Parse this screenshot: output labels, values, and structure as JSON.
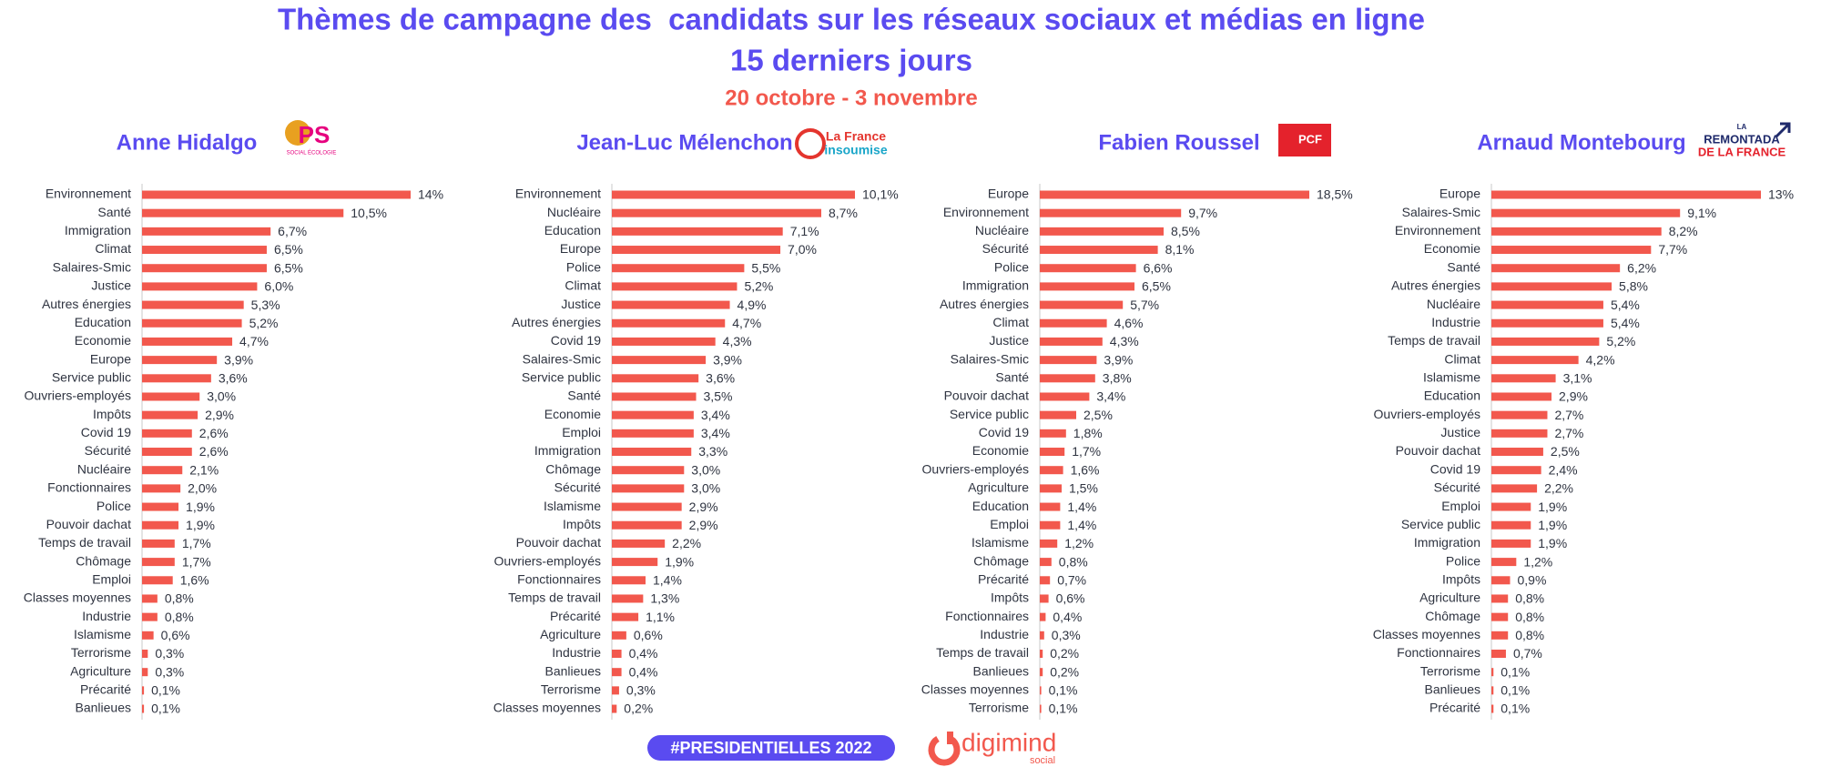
{
  "header": {
    "title_lines": [
      "Thèmes de campagne des  candidats sur les réseaux sociaux et médias en ligne",
      "15 derniers jours"
    ],
    "subtitle": "20 octobre - 3 novembre"
  },
  "chart_data": [
    {
      "type": "bar",
      "orientation": "horizontal",
      "title": "Anne Hidalgo",
      "logo": [
        "PS",
        "SOCIAL ÉCOLOGIE"
      ],
      "color": "#f2584d",
      "categories": [
        "Environnement",
        "Santé",
        "Immigration",
        "Climat",
        "Salaires-Smic",
        "Justice",
        "Autres énergies",
        "Education",
        "Economie",
        "Europe",
        "Service public",
        "Ouvriers-employés",
        "Impôts",
        "Covid 19",
        "Sécurité",
        "Nucléaire",
        "Fonctionnaires",
        "Police",
        "Pouvoir dachat",
        "Temps de travail",
        "Chômage",
        "Emploi",
        "Classes moyennes",
        "Industrie",
        "Islamisme",
        "Terrorisme",
        "Agriculture",
        "Précarité",
        "Banlieues"
      ],
      "values": [
        14,
        10.5,
        6.7,
        6.5,
        6.5,
        6.0,
        5.3,
        5.2,
        4.7,
        3.9,
        3.6,
        3.0,
        2.9,
        2.6,
        2.6,
        2.1,
        2.0,
        1.9,
        1.9,
        1.7,
        1.7,
        1.6,
        0.8,
        0.8,
        0.6,
        0.3,
        0.3,
        0.1,
        0.1
      ],
      "value_labels": [
        "14%",
        "10,5%",
        "6,7%",
        "6,5%",
        "6,5%",
        "6,0%",
        "5,3%",
        "5,2%",
        "4,7%",
        "3,9%",
        "3,6%",
        "3,0%",
        "2,9%",
        "2,6%",
        "2,6%",
        "2,1%",
        "2,0%",
        "1,9%",
        "1,9%",
        "1,7%",
        "1,7%",
        "1,6%",
        "0,8%",
        "0,8%",
        "0,6%",
        "0,3%",
        "0,3%",
        "0,1%",
        "0,1%"
      ]
    },
    {
      "type": "bar",
      "orientation": "horizontal",
      "title": "Jean-Luc Mélenchon",
      "logo": [
        "La France",
        "insoumise"
      ],
      "color": "#f2584d",
      "categories": [
        "Environnement",
        "Nucléaire",
        "Education",
        "Europe",
        "Police",
        "Climat",
        "Justice",
        "Autres énergies",
        "Covid 19",
        "Salaires-Smic",
        "Service public",
        "Santé",
        "Economie",
        "Emploi",
        "Immigration",
        "Chômage",
        "Sécurité",
        "Islamisme",
        "Impôts",
        "Pouvoir dachat",
        "Ouvriers-employés",
        "Fonctionnaires",
        "Temps de travail",
        "Précarité",
        "Agriculture",
        "Industrie",
        "Banlieues",
        "Terrorisme",
        "Classes moyennes"
      ],
      "values": [
        10.1,
        8.7,
        7.1,
        7.0,
        5.5,
        5.2,
        4.9,
        4.7,
        4.3,
        3.9,
        3.6,
        3.5,
        3.4,
        3.4,
        3.3,
        3.0,
        3.0,
        2.9,
        2.9,
        2.2,
        1.9,
        1.4,
        1.3,
        1.1,
        0.6,
        0.4,
        0.4,
        0.3,
        0.2
      ],
      "value_labels": [
        "10,1%",
        "8,7%",
        "7,1%",
        "7,0%",
        "5,5%",
        "5,2%",
        "4,9%",
        "4,7%",
        "4,3%",
        "3,9%",
        "3,6%",
        "3,5%",
        "3,4%",
        "3,4%",
        "3,3%",
        "3,0%",
        "3,0%",
        "2,9%",
        "2,9%",
        "2,2%",
        "1,9%",
        "1,4%",
        "1,3%",
        "1,1%",
        "0,6%",
        "0,4%",
        "0,4%",
        "0,3%",
        "0,2%"
      ]
    },
    {
      "type": "bar",
      "orientation": "horizontal",
      "title": "Fabien Roussel",
      "logo": [
        "PCF"
      ],
      "color": "#f2584d",
      "categories": [
        "Europe",
        "Environnement",
        "Nucléaire",
        "Sécurité",
        "Police",
        "Immigration",
        "Autres énergies",
        "Climat",
        "Justice",
        "Salaires-Smic",
        "Santé",
        "Pouvoir dachat",
        "Service public",
        "Covid 19",
        "Economie",
        "Ouvriers-employés",
        "Agriculture",
        "Education",
        "Emploi",
        "Islamisme",
        "Chômage",
        "Précarité",
        "Impôts",
        "Fonctionnaires",
        "Industrie",
        "Temps de travail",
        "Banlieues",
        "Classes moyennes",
        "Terrorisme"
      ],
      "values": [
        18.5,
        9.7,
        8.5,
        8.1,
        6.6,
        6.5,
        5.7,
        4.6,
        4.3,
        3.9,
        3.8,
        3.4,
        2.5,
        1.8,
        1.7,
        1.6,
        1.5,
        1.4,
        1.4,
        1.2,
        0.8,
        0.7,
        0.6,
        0.4,
        0.3,
        0.2,
        0.2,
        0.1,
        0.1
      ],
      "value_labels": [
        "18,5%",
        "9,7%",
        "8,5%",
        "8,1%",
        "6,6%",
        "6,5%",
        "5,7%",
        "4,6%",
        "4,3%",
        "3,9%",
        "3,8%",
        "3,4%",
        "2,5%",
        "1,8%",
        "1,7%",
        "1,6%",
        "1,5%",
        "1,4%",
        "1,4%",
        "1,2%",
        "0,8%",
        "0,7%",
        "0,6%",
        "0,4%",
        "0,3%",
        "0,2%",
        "0,2%",
        "0,1%",
        "0,1%"
      ]
    },
    {
      "type": "bar",
      "orientation": "horizontal",
      "title": "Arnaud Montebourg",
      "logo": [
        "LA",
        "REMONTADA",
        "DE LA FRANCE"
      ],
      "color": "#f2584d",
      "categories": [
        "Europe",
        "Salaires-Smic",
        "Environnement",
        "Economie",
        "Santé",
        "Autres énergies",
        "Nucléaire",
        "Industrie",
        "Temps de travail",
        "Climat",
        "Islamisme",
        "Education",
        "Ouvriers-employés",
        "Justice",
        "Pouvoir dachat",
        "Covid 19",
        "Sécurité",
        "Emploi",
        "Service public",
        "Immigration",
        "Police",
        "Impôts",
        "Agriculture",
        "Chômage",
        "Classes moyennes",
        "Fonctionnaires",
        "Terrorisme",
        "Banlieues",
        "Précarité"
      ],
      "values": [
        13,
        9.1,
        8.2,
        7.7,
        6.2,
        5.8,
        5.4,
        5.4,
        5.2,
        4.2,
        3.1,
        2.9,
        2.7,
        2.7,
        2.5,
        2.4,
        2.2,
        1.9,
        1.9,
        1.9,
        1.2,
        0.9,
        0.8,
        0.8,
        0.8,
        0.7,
        0.1,
        0.1,
        0.1
      ],
      "value_labels": [
        "13%",
        "9,1%",
        "8,2%",
        "7,7%",
        "6,2%",
        "5,8%",
        "5,4%",
        "5,4%",
        "5,2%",
        "4,2%",
        "3,1%",
        "2,9%",
        "2,7%",
        "2,7%",
        "2,5%",
        "2,4%",
        "2,2%",
        "1,9%",
        "1,9%",
        "1,9%",
        "1,2%",
        "0,9%",
        "0,8%",
        "0,8%",
        "0,8%",
        "0,7%",
        "0,1%",
        "0,1%",
        "0,1%"
      ]
    }
  ],
  "footer": {
    "hashtag": "#PRESIDENTIELLES 2022",
    "brand": "digimind",
    "brand_sub": "social"
  }
}
